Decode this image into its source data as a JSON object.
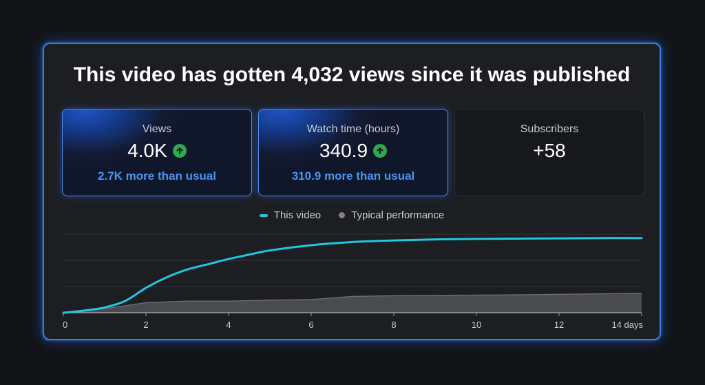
{
  "header": {
    "title": "This video has gotten 4,032 views since it was published"
  },
  "cards": [
    {
      "label": "Views",
      "value": "4.0K",
      "note": "2.7K more than usual",
      "trend_icon": "arrow-up-icon",
      "active": true
    },
    {
      "label": "Watch time (hours)",
      "value": "340.9",
      "note": "310.9 more than usual",
      "trend_icon": "arrow-up-icon",
      "active": true
    },
    {
      "label": "Subscribers",
      "value": "+58",
      "active": false
    }
  ],
  "legend": {
    "this_video": "This video",
    "typical": "Typical performance"
  },
  "colors": {
    "accent": "#3a7de8",
    "this_video": "#22c6e0",
    "typical": "#808080",
    "trend_up": "#2fa84f",
    "note": "#4a95f2"
  },
  "chart_data": {
    "type": "line",
    "x_unit": "days",
    "x_ticks": [
      "0",
      "2",
      "4",
      "6",
      "8",
      "10",
      "12",
      "14 days"
    ],
    "xlim": [
      0,
      14
    ],
    "ylim": [
      0,
      3
    ],
    "grid": true,
    "legend_position": "top-center",
    "series": [
      {
        "name": "This video",
        "type": "line",
        "x": [
          0,
          0.5,
          1,
          1.5,
          2,
          2.5,
          3,
          3.5,
          4,
          4.5,
          5,
          6,
          7,
          8,
          9,
          10,
          11,
          12,
          13,
          14
        ],
        "y": [
          0,
          0.08,
          0.2,
          0.45,
          0.95,
          1.35,
          1.65,
          1.85,
          2.05,
          2.22,
          2.38,
          2.58,
          2.7,
          2.76,
          2.8,
          2.82,
          2.83,
          2.84,
          2.85,
          2.85
        ]
      },
      {
        "name": "Typical performance",
        "type": "area",
        "x": [
          0,
          1,
          2,
          3,
          4,
          5,
          6,
          7,
          8,
          9,
          10,
          11,
          12,
          13,
          14
        ],
        "y": [
          0,
          0.15,
          0.38,
          0.44,
          0.44,
          0.48,
          0.5,
          0.62,
          0.65,
          0.66,
          0.67,
          0.68,
          0.7,
          0.72,
          0.74
        ]
      }
    ]
  }
}
